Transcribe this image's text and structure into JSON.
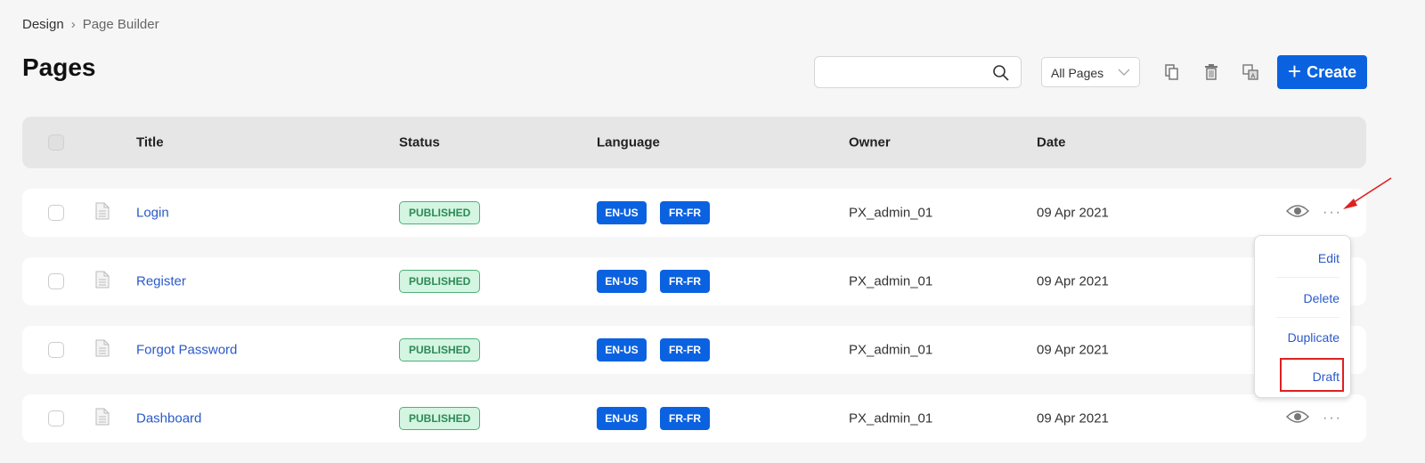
{
  "breadcrumb": {
    "items": [
      "Design",
      "Page Builder"
    ]
  },
  "page_title": "Pages",
  "toolbar": {
    "search_value": "",
    "filter_selected": "All Pages",
    "create_label": "Create",
    "icons": [
      "copy-icon",
      "trash-icon",
      "translate-icon"
    ]
  },
  "table": {
    "columns": [
      "Title",
      "Status",
      "Language",
      "Owner",
      "Date"
    ],
    "rows": [
      {
        "title": "Login",
        "status": "PUBLISHED",
        "languages": [
          "EN-US",
          "FR-FR"
        ],
        "owner": "PX_admin_01",
        "date": "09 Apr 2021"
      },
      {
        "title": "Register",
        "status": "PUBLISHED",
        "languages": [
          "EN-US",
          "FR-FR"
        ],
        "owner": "PX_admin_01",
        "date": "09 Apr 2021"
      },
      {
        "title": "Forgot Password",
        "status": "PUBLISHED",
        "languages": [
          "EN-US",
          "FR-FR"
        ],
        "owner": "PX_admin_01",
        "date": "09 Apr 2021"
      },
      {
        "title": "Dashboard",
        "status": "PUBLISHED",
        "languages": [
          "EN-US",
          "FR-FR"
        ],
        "owner": "PX_admin_01",
        "date": "09 Apr 2021"
      }
    ]
  },
  "context_menu": {
    "items": [
      "Edit",
      "Delete",
      "Duplicate",
      "Draft"
    ],
    "highlighted": "Draft"
  },
  "colors": {
    "accent": "#0b62e0",
    "link": "#2a59c9",
    "published_bg": "#d3f5e1",
    "published_text": "#2d8a56",
    "annotation": "#e02020"
  }
}
